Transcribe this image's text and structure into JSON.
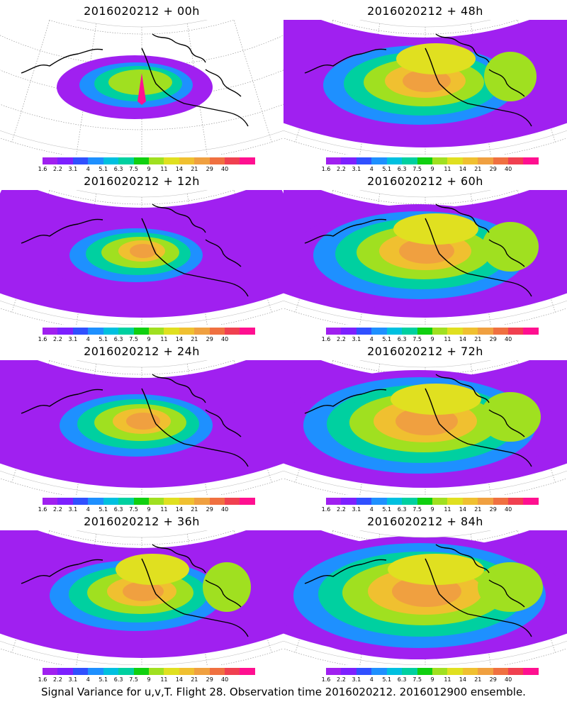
{
  "panels": [
    {
      "title": "2016020212  +  00h",
      "lead": "00h",
      "stage": 0
    },
    {
      "title": "2016020212  +  48h",
      "lead": "48h",
      "stage": 4
    },
    {
      "title": "2016020212  +  12h",
      "lead": "12h",
      "stage": 1
    },
    {
      "title": "2016020212  +  60h",
      "lead": "60h",
      "stage": 5
    },
    {
      "title": "2016020212  +  24h",
      "lead": "24h",
      "stage": 2
    },
    {
      "title": "2016020212  +  72h",
      "lead": "72h",
      "stage": 6
    },
    {
      "title": "2016020212  +  36h",
      "lead": "36h",
      "stage": 3
    },
    {
      "title": "2016020212  +  84h",
      "lead": "84h",
      "stage": 7
    }
  ],
  "colorbar": {
    "colors": [
      "#a020f0",
      "#7d20ff",
      "#3050ff",
      "#1e90ff",
      "#00c0e0",
      "#00d0a0",
      "#10d010",
      "#a0e020",
      "#e0e020",
      "#f0c030",
      "#f0a040",
      "#f07040",
      "#f04050",
      "#ff1090"
    ],
    "ticks": [
      "1.6",
      "2.2",
      "3.1",
      "4",
      "5.1",
      "6.3",
      "7.5",
      "9",
      "11",
      "14",
      "21",
      "29",
      "40"
    ]
  },
  "caption": "Signal Variance for u,v,T. Flight 28. Observation time 2016020212. 2016012900 ensemble."
}
